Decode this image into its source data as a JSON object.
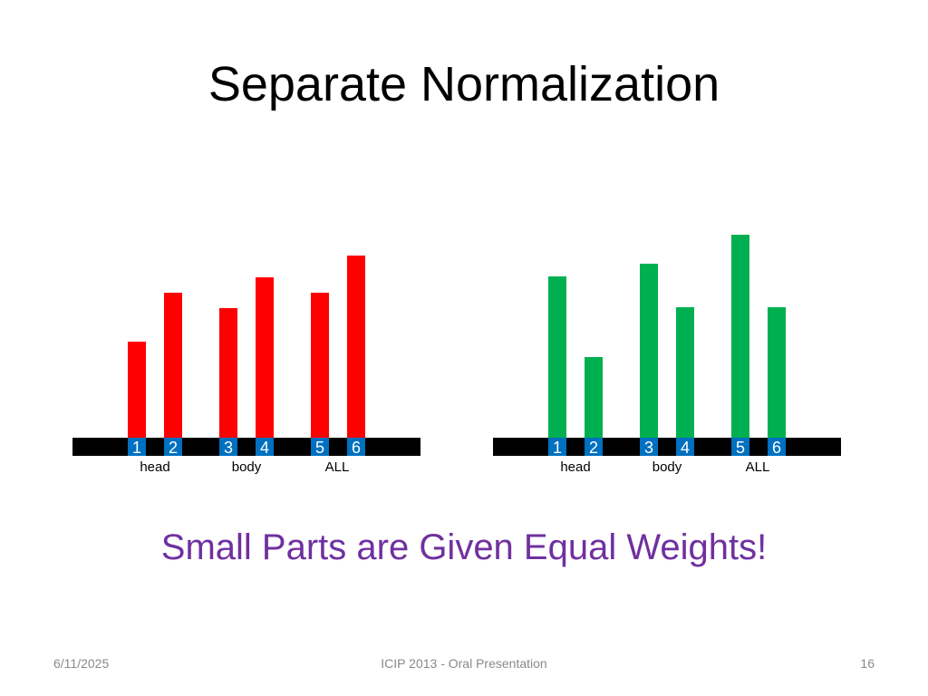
{
  "slide": {
    "title": "Separate Normalization",
    "tagline": "Small Parts are Given Equal Weights!",
    "footer_date": "6/11/2025",
    "footer_center": "ICIP 2013 - Oral Presentation",
    "footer_page": "16"
  },
  "colors": {
    "left_bars": "#ff0000",
    "right_bars": "#00b050",
    "axis": "#000000",
    "index_box": "#0070c0",
    "index_text": "#ffffff",
    "tagline": "#7030a0"
  },
  "chart_data": [
    {
      "type": "bar",
      "title": "",
      "xlabel": "",
      "ylabel": "",
      "categories": [
        "1",
        "2",
        "3",
        "4",
        "5",
        "6"
      ],
      "groups": [
        "head",
        "body",
        "ALL"
      ],
      "values": [
        106,
        160,
        143,
        177,
        160,
        201
      ],
      "ylim": [
        0,
        240
      ],
      "grid": false
    },
    {
      "type": "bar",
      "title": "",
      "xlabel": "",
      "ylabel": "",
      "categories": [
        "1",
        "2",
        "3",
        "4",
        "5",
        "6"
      ],
      "groups": [
        "head",
        "body",
        "ALL"
      ],
      "values": [
        178,
        89,
        192,
        144,
        224,
        144
      ],
      "ylim": [
        0,
        240
      ],
      "grid": false
    }
  ]
}
